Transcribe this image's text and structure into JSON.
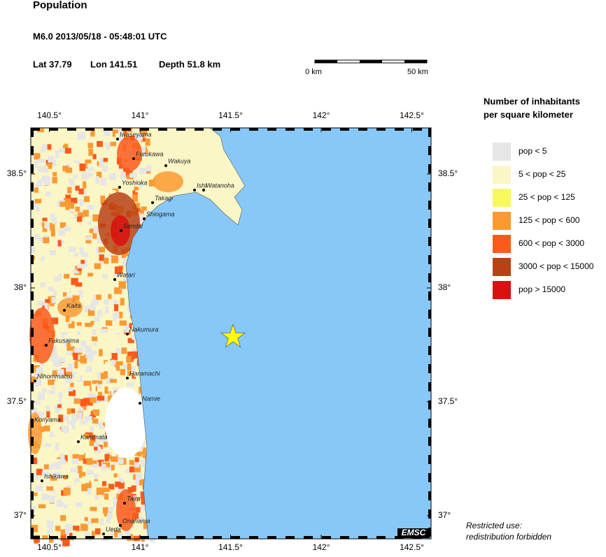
{
  "header": {
    "title": "Population",
    "event": "M6.0  2013/05/18 - 05:48:01 UTC",
    "lat": "Lat 37.79",
    "lon": "Lon 141.51",
    "depth": "Depth  51.8 km"
  },
  "scale_bar": {
    "start": "0 km",
    "end": "50 km"
  },
  "map": {
    "lon_ticks": [
      {
        "value": 140.5,
        "label": "140.5°"
      },
      {
        "value": 141,
        "label": "141°"
      },
      {
        "value": 141.5,
        "label": "141.5°"
      },
      {
        "value": 142,
        "label": "142°"
      },
      {
        "value": 142.5,
        "label": "142.5°"
      }
    ],
    "lat_ticks": [
      {
        "value": 38.5,
        "label": "38.5°"
      },
      {
        "value": 38,
        "label": "38°"
      },
      {
        "value": 37.5,
        "label": "37.5°"
      },
      {
        "value": 37,
        "label": "37°"
      }
    ],
    "towns": [
      "Iwaseyama",
      "Furukawa",
      "Wakuya",
      "Yoshioka",
      "Ishi",
      "Watanoha",
      "Takagi",
      "Shiogama",
      "Sendai",
      "Watari",
      "Kaita",
      "Nakumura",
      "Fukusaima",
      "Nihommatsu",
      "Haramachi",
      "Namie",
      "Koriyama",
      "Kammata",
      "Ishikawa",
      "Taira",
      "Onahama",
      "Ueda"
    ],
    "badge": "EMSC",
    "sea_color": "#87c8f8",
    "epicenter_color": "#ffff00"
  },
  "legend": {
    "title": [
      "Number of inhabitants",
      "per square kilometer"
    ],
    "items": [
      {
        "label": "pop < 5",
        "color": "#e6e6e6"
      },
      {
        "label": "5 < pop < 25",
        "color": "#fbf6c6"
      },
      {
        "label": "25 < pop < 125",
        "color": "#f9f75e"
      },
      {
        "label": "125 < pop < 600",
        "color": "#fb9a33"
      },
      {
        "label": "600 < pop < 3000",
        "color": "#fc5a1c"
      },
      {
        "label": "3000 < pop < 15000",
        "color": "#b84214"
      },
      {
        "label": "pop > 15000",
        "color": "#d8120f"
      }
    ]
  },
  "note": [
    "Restricted use:",
    "redistribution forbidden"
  ]
}
